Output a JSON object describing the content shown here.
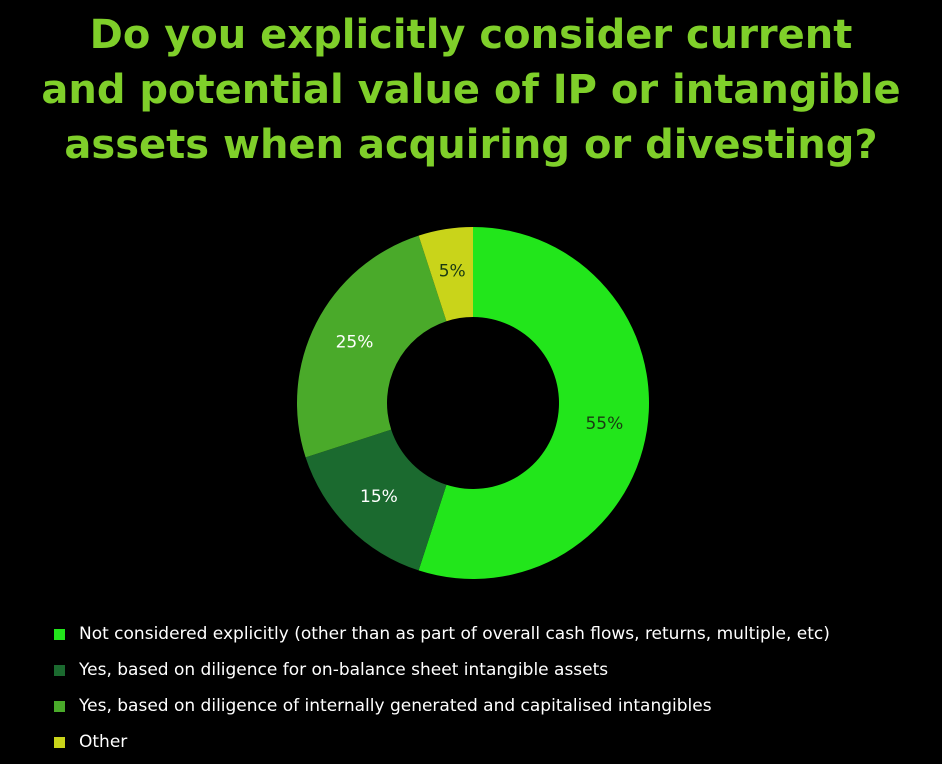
{
  "title_lines": [
    "Do you explicitly consider current",
    "and potential value of IP or intangible",
    "assets when acquiring or divesting?"
  ],
  "colors": {
    "background": "#000000",
    "title": "#7fcf2a",
    "label_dark": "#1a3a12",
    "label_light": "#ffffff"
  },
  "chart_data": {
    "type": "pie",
    "title": "Do you explicitly consider current and potential value of IP or intangible assets when acquiring or divesting?",
    "donut": true,
    "legend_position": "bottom-left",
    "slices": [
      {
        "label": "Not considered explicitly (other than as part of overall cash flows, returns, multiple, etc)",
        "value": 55,
        "display": "55%",
        "color": "#22e61b",
        "label_color": "#1a3a12"
      },
      {
        "label": "Yes, based on diligence for on-balance sheet intangible assets",
        "value": 15,
        "display": "15%",
        "color": "#1b6a2f",
        "label_color": "#ffffff"
      },
      {
        "label": "Yes, based on diligence of internally generated and capitalised intangibles",
        "value": 25,
        "display": "25%",
        "color": "#4aaa2a",
        "label_color": "#ffffff"
      },
      {
        "label": "Other",
        "value": 5,
        "display": "5%",
        "color": "#c9d41a",
        "label_color": "#1a3a12"
      }
    ]
  }
}
